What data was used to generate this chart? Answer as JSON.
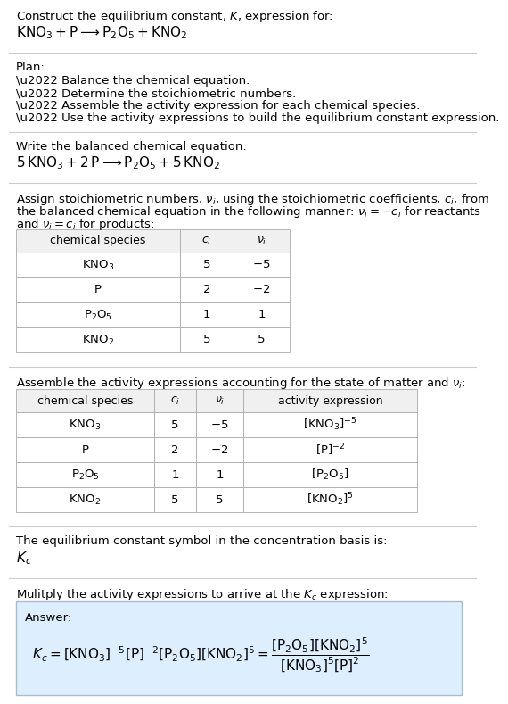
{
  "bg_color": "#ffffff",
  "text_color": "#000000",
  "title_line1": "Construct the equilibrium constant, $K$, expression for:",
  "title_line2": "$\\mathrm{KNO_3 + P \\longrightarrow P_2O_5 + KNO_2}$",
  "plan_header": "Plan:",
  "plan_texts": [
    "\\u2022 Balance the chemical equation.",
    "\\u2022 Determine the stoichiometric numbers.",
    "\\u2022 Assemble the activity expression for each chemical species.",
    "\\u2022 Use the activity expressions to build the equilibrium constant expression."
  ],
  "balanced_header": "Write the balanced chemical equation:",
  "balanced_eq": "$\\mathrm{5\\,KNO_3 + 2\\,P \\longrightarrow P_2O_5 + 5\\,KNO_2}$",
  "stoich_line1": "Assign stoichiometric numbers, $\\nu_i$, using the stoichiometric coefficients, $c_i$, from",
  "stoich_line2": "the balanced chemical equation in the following manner: $\\nu_i = -c_i$ for reactants",
  "stoich_line3": "and $\\nu_i = c_i$ for products:",
  "table1_cols": [
    "chemical species",
    "$c_i$",
    "$\\nu_i$"
  ],
  "table1_rows": [
    [
      "$\\mathrm{KNO_3}$",
      "5",
      "$-5$"
    ],
    [
      "P",
      "2",
      "$-2$"
    ],
    [
      "$\\mathrm{P_2O_5}$",
      "1",
      "1"
    ],
    [
      "$\\mathrm{KNO_2}$",
      "5",
      "5"
    ]
  ],
  "assemble_header": "Assemble the activity expressions accounting for the state of matter and $\\nu_i$:",
  "table2_cols": [
    "chemical species",
    "$c_i$",
    "$\\nu_i$",
    "activity expression"
  ],
  "table2_rows": [
    [
      "$\\mathrm{KNO_3}$",
      "5",
      "$-5$",
      "$[\\mathrm{KNO_3}]^{-5}$"
    ],
    [
      "P",
      "2",
      "$-2$",
      "$[\\mathrm{P}]^{-2}$"
    ],
    [
      "$\\mathrm{P_2O_5}$",
      "1",
      "1",
      "$[\\mathrm{P_2O_5}]$"
    ],
    [
      "$\\mathrm{KNO_2}$",
      "5",
      "5",
      "$[\\mathrm{KNO_2}]^5$"
    ]
  ],
  "kc_header": "The equilibrium constant symbol in the concentration basis is:",
  "kc_symbol": "$K_c$",
  "multiply_header": "Mulitply the activity expressions to arrive at the $K_c$ expression:",
  "answer_label": "Answer:",
  "answer_box_color": "#ddeeff",
  "answer_box_edge": "#aabbcc",
  "fs": 9.5,
  "fs_eq": 11.0,
  "fs_small": 9.0
}
